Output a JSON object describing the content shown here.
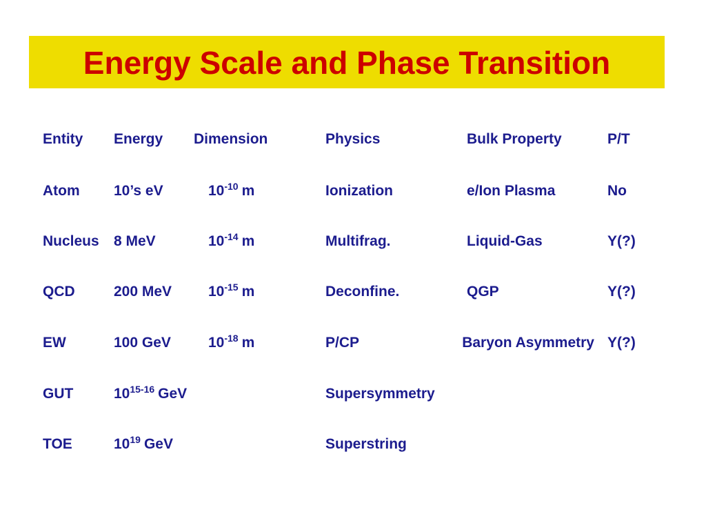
{
  "header": {
    "title": "Energy Scale and Phase Transition"
  },
  "table": {
    "columns": [
      "Entity",
      "Energy",
      "Dimension",
      "Physics",
      "Bulk Property",
      "P/T"
    ],
    "rows": [
      {
        "entity": "Atom",
        "energy": "10’s eV",
        "dimension": {
          "base": "10",
          "sup": "-10",
          "unit": "m"
        },
        "physics": "Ionization",
        "bulk": "e/Ion Plasma",
        "pt": "No"
      },
      {
        "entity": "Nucleus",
        "energy": "8 MeV",
        "dimension": {
          "base": "10",
          "sup": "-14",
          "unit": "m"
        },
        "physics": "Multifrag.",
        "bulk": "Liquid-Gas",
        "pt": "Y(?)"
      },
      {
        "entity": "QCD",
        "energy": "200 MeV",
        "dimension": {
          "base": "10",
          "sup": "-15",
          "unit": "m"
        },
        "physics": "Deconfine.",
        "bulk": "QGP",
        "pt": "Y(?)"
      },
      {
        "entity": "EW",
        "energy": "100 GeV",
        "dimension": {
          "base": "10",
          "sup": "-18",
          "unit": "m"
        },
        "physics": "P/CP",
        "bulk": "Baryon Asymmetry",
        "pt": "Y(?)"
      },
      {
        "entity": "GUT",
        "energy": {
          "base": "10",
          "sup": "15-16",
          "unit": "GeV"
        },
        "physics": "Supersymmetry"
      },
      {
        "entity": "TOE",
        "energy": {
          "base": "10",
          "sup": "19",
          "unit": "GeV"
        },
        "physics": "Superstring"
      }
    ]
  }
}
